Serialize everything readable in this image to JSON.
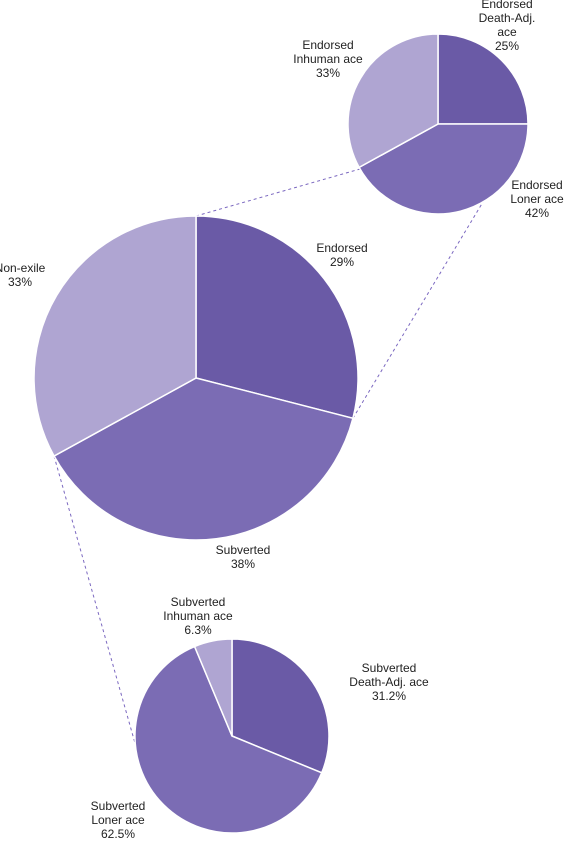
{
  "chart_data": [
    {
      "type": "pie",
      "id": "main",
      "slices": [
        {
          "label_lines": [
            "Endorsed",
            "29%"
          ],
          "value": 29,
          "color": "#6a5aa6"
        },
        {
          "label_lines": [
            "Subverted",
            "38%"
          ],
          "value": 38,
          "color": "#7b6cb4"
        },
        {
          "label_lines": [
            "Non-exile",
            "33%"
          ],
          "value": 33,
          "color": "#afa5d2"
        }
      ]
    },
    {
      "type": "pie",
      "id": "endorsed-detail",
      "slices": [
        {
          "label_lines": [
            "Endorsed",
            "Death-Adj.",
            "ace",
            "25%"
          ],
          "value": 25,
          "color": "#6a5aa6"
        },
        {
          "label_lines": [
            "Endorsed",
            "Loner ace",
            "42%"
          ],
          "value": 42,
          "color": "#7b6cb4"
        },
        {
          "label_lines": [
            "Endorsed",
            "Inhuman ace",
            "33%"
          ],
          "value": 33,
          "color": "#afa5d2"
        }
      ]
    },
    {
      "type": "pie",
      "id": "subverted-detail",
      "slices": [
        {
          "label_lines": [
            "Subverted",
            "Death-Adj. ace",
            "31.2%"
          ],
          "value": 31.2,
          "color": "#6a5aa6"
        },
        {
          "label_lines": [
            "Subverted",
            "Loner ace",
            "62.5%"
          ],
          "value": 62.5,
          "color": "#7b6cb4"
        },
        {
          "label_lines": [
            "Subverted",
            "Inhuman ace",
            "6.3%"
          ],
          "value": 6.3,
          "color": "#afa5d2"
        }
      ]
    }
  ]
}
